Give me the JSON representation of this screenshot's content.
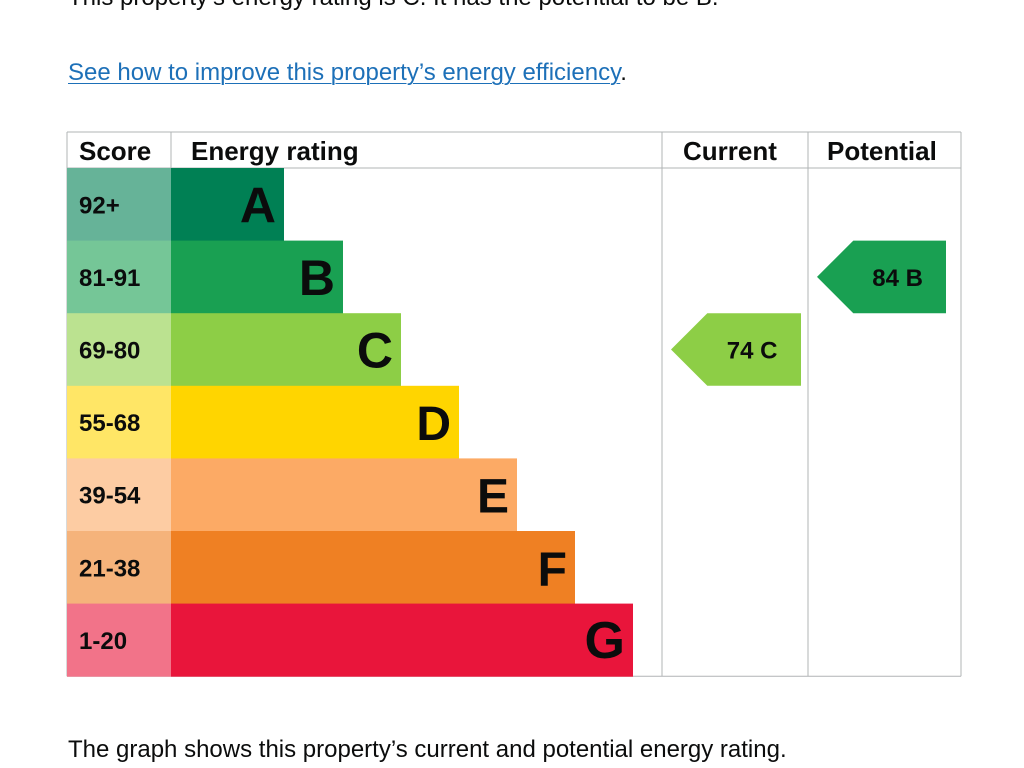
{
  "intro": {
    "sentence": "This property’s energy rating is C. It has the potential to be B."
  },
  "improve_link": {
    "label": "See how to improve this property’s energy efficiency",
    "trailing": "."
  },
  "chart_data": {
    "type": "bar",
    "title": "Energy rating",
    "columns": [
      "Score",
      "Energy rating",
      "Current",
      "Potential"
    ],
    "bands": [
      {
        "score": "92+",
        "letter": "A",
        "color": "#008054",
        "score_bg": "#66b398"
      },
      {
        "score": "81-91",
        "letter": "B",
        "color": "#19a052",
        "score_bg": "#75c697"
      },
      {
        "score": "69-80",
        "letter": "C",
        "color": "#8dce46",
        "score_bg": "#bbe290"
      },
      {
        "score": "55-68",
        "letter": "D",
        "color": "#ffd500",
        "score_bg": "#ffe666"
      },
      {
        "score": "39-54",
        "letter": "E",
        "color": "#fcaa65",
        "score_bg": "#fdcca3"
      },
      {
        "score": "21-38",
        "letter": "F",
        "color": "#ef8023",
        "score_bg": "#f5b37b"
      },
      {
        "score": "1-20",
        "letter": "G",
        "color": "#e9153b",
        "score_bg": "#f27389"
      }
    ],
    "current": {
      "value": 74,
      "band": "C",
      "label": "74  C"
    },
    "potential": {
      "value": 84,
      "band": "B",
      "label": "84  B"
    }
  },
  "footer": {
    "sentence": "The graph shows this property’s current and potential energy rating."
  }
}
